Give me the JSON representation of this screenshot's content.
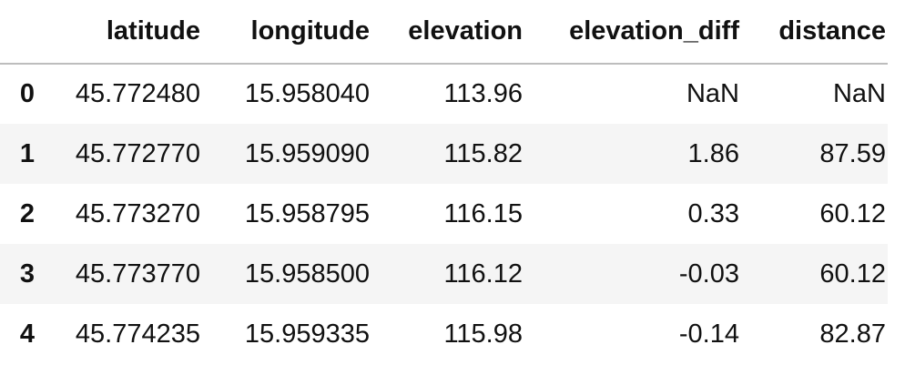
{
  "table": {
    "columns": [
      "",
      "latitude",
      "longitude",
      "elevation",
      "elevation_diff",
      "distance"
    ],
    "rows": [
      {
        "index": "0",
        "latitude": "45.772480",
        "longitude": "15.958040",
        "elevation": "113.96",
        "elevation_diff": "NaN",
        "distance": "NaN"
      },
      {
        "index": "1",
        "latitude": "45.772770",
        "longitude": "15.959090",
        "elevation": "115.82",
        "elevation_diff": "1.86",
        "distance": "87.59"
      },
      {
        "index": "2",
        "latitude": "45.773270",
        "longitude": "15.958795",
        "elevation": "116.15",
        "elevation_diff": "0.33",
        "distance": "60.12"
      },
      {
        "index": "3",
        "latitude": "45.773770",
        "longitude": "15.958500",
        "elevation": "116.12",
        "elevation_diff": "-0.03",
        "distance": "60.12"
      },
      {
        "index": "4",
        "latitude": "45.774235",
        "longitude": "15.959335",
        "elevation": "115.98",
        "elevation_diff": "-0.14",
        "distance": "82.87"
      }
    ]
  }
}
